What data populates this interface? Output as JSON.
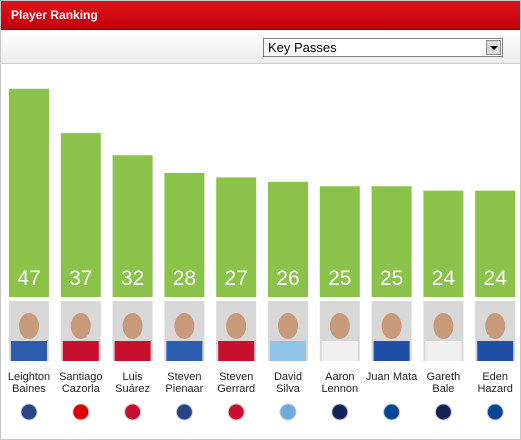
{
  "header": {
    "title": "Player Ranking"
  },
  "dropdown": {
    "selected": "Key Passes"
  },
  "chart_data": {
    "type": "bar",
    "categories": [
      "Leighton Baines",
      "Santiago Cazorla",
      "Luis Suárez",
      "Steven Pienaar",
      "Steven Gerrard",
      "David Silva",
      "Aaron Lennon",
      "Juan Mata",
      "Gareth Bale",
      "Eden Hazard"
    ],
    "values": [
      47,
      37,
      32,
      28,
      27,
      26,
      25,
      25,
      24,
      24
    ],
    "color": "#8bc34a"
  }
}
